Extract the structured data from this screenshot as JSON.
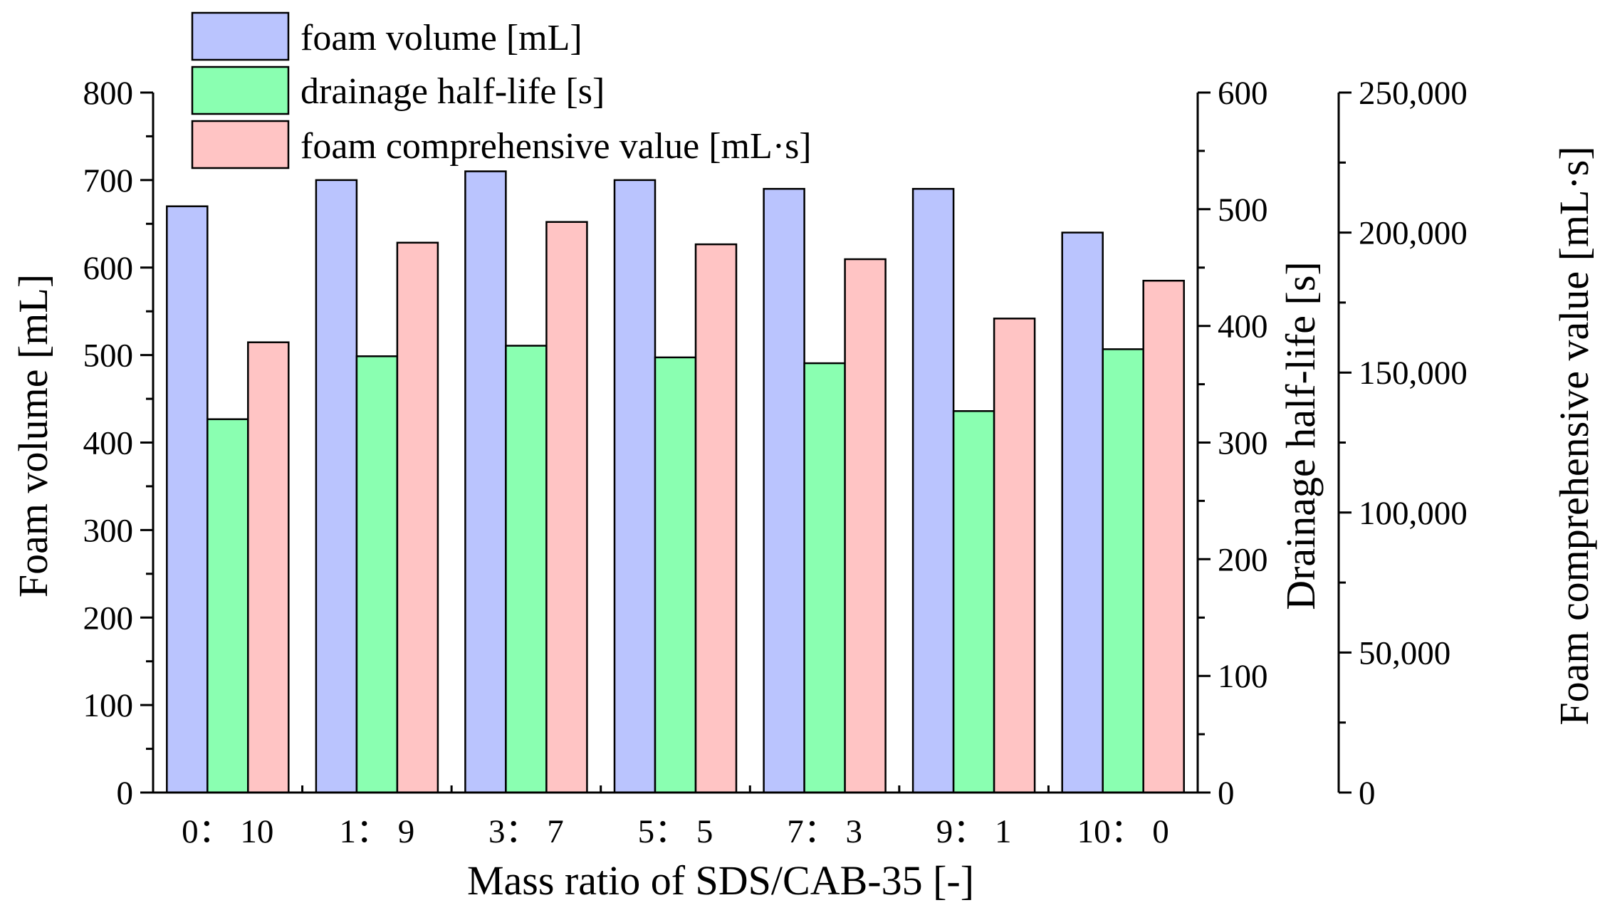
{
  "chart_data": {
    "type": "bar",
    "title": "",
    "xlabel": "Mass ratio of SDS/CAB-35 [-]",
    "categories": [
      "0： 10",
      "1： 9",
      "3： 7",
      "5： 5",
      "7： 3",
      "9： 1",
      "10： 0"
    ],
    "series": [
      {
        "name": "foam volume [mL]",
        "axis": "left",
        "color": "#bac4fe",
        "values": [
          670,
          700,
          710,
          700,
          690,
          690,
          640
        ]
      },
      {
        "name": "drainage half-life [s]",
        "axis": "middle",
        "color": "#8affb1",
        "values": [
          320,
          374,
          383,
          373,
          368,
          327,
          380
        ]
      },
      {
        "name": "foam comprehensive value [mL·s]",
        "axis": "right",
        "color": "#ffc4c4",
        "values": [
          160800,
          196400,
          203800,
          195800,
          190500,
          169300,
          182800
        ]
      }
    ],
    "axes": {
      "left": {
        "label": "Foam volume [mL]",
        "ylim": [
          0,
          800
        ],
        "ticks": [
          0,
          100,
          200,
          300,
          400,
          500,
          600,
          700,
          800
        ],
        "tick_labels": [
          "0",
          "100",
          "200",
          "300",
          "400",
          "500",
          "600",
          "700",
          "800"
        ]
      },
      "middle": {
        "label": "Drainage half-life [s]",
        "ylim": [
          0,
          600
        ],
        "ticks": [
          0,
          100,
          200,
          300,
          400,
          500,
          600
        ],
        "tick_labels": [
          "0",
          "100",
          "200",
          "300",
          "400",
          "500",
          "600"
        ]
      },
      "right": {
        "label": "Foam comprehensive value [mL·s]",
        "ylim": [
          0,
          250000
        ],
        "ticks": [
          0,
          50000,
          100000,
          150000,
          200000,
          250000
        ],
        "tick_labels": [
          "0",
          "50,000",
          "100,000",
          "150,000",
          "200,000",
          "250,000"
        ]
      }
    },
    "legend_position": "top-left",
    "grid": false
  }
}
